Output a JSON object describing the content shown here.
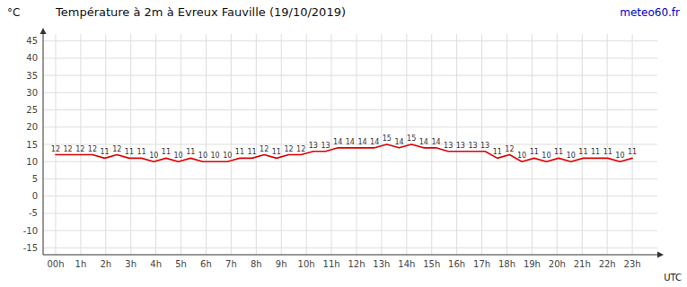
{
  "chart_data": {
    "type": "line",
    "title": "Température à 2m à Evreux Fauville (19/10/2019)",
    "x_label": "UTC",
    "y_label": "°C",
    "annotations": [
      {
        "text": "meteo60.fr",
        "color": "#0000cc"
      }
    ],
    "x": [
      0,
      0.489362,
      0.978723,
      1.468085,
      1.957447,
      2.446809,
      2.93617,
      3.425532,
      3.914894,
      4.404255,
      4.893617,
      5.382979,
      5.87234,
      6.361702,
      6.851064,
      7.340426,
      7.829787,
      8.319149,
      8.808511,
      9.297872,
      9.787234,
      10.276596,
      10.765957,
      11.255319,
      11.744681,
      12.234043,
      12.723404,
      13.212766,
      13.702128,
      14.191489,
      14.680851,
      15.170213,
      15.659574,
      16.148936,
      16.638298,
      17.12766,
      17.617021,
      18.106383,
      18.595745,
      19.085106,
      19.574468,
      20.06383,
      20.553191,
      21.042553,
      21.531915,
      22.021277,
      22.510638,
      23
    ],
    "values": [
      12,
      12,
      12,
      12,
      11,
      12,
      11,
      11,
      10,
      11,
      10,
      11,
      10,
      10,
      10,
      11,
      11,
      12,
      11,
      12,
      12,
      13,
      13,
      14,
      14,
      14,
      14,
      15,
      14,
      15,
      14,
      14,
      13,
      13,
      13,
      13,
      11,
      12,
      10,
      11,
      10,
      11,
      10,
      11,
      11,
      11,
      10,
      11
    ],
    "color": "#dd0000",
    "data_labels": true,
    "grid": true,
    "xlim": [
      -0.5,
      24.0
    ],
    "xticks": [
      {
        "value": 0,
        "label": "00h"
      },
      {
        "value": 1,
        "label": "1h"
      },
      {
        "value": 2,
        "label": "2h"
      },
      {
        "value": 3,
        "label": "3h"
      },
      {
        "value": 4,
        "label": "4h"
      },
      {
        "value": 5,
        "label": "5h"
      },
      {
        "value": 6,
        "label": "6h"
      },
      {
        "value": 7,
        "label": "7h"
      },
      {
        "value": 8,
        "label": "8h"
      },
      {
        "value": 9,
        "label": "9h"
      },
      {
        "value": 10,
        "label": "10h"
      },
      {
        "value": 11,
        "label": "11h"
      },
      {
        "value": 12,
        "label": "12h"
      },
      {
        "value": 13,
        "label": "13h"
      },
      {
        "value": 14,
        "label": "14h"
      },
      {
        "value": 15,
        "label": "15h"
      },
      {
        "value": 16,
        "label": "16h"
      },
      {
        "value": 17,
        "label": "17h"
      },
      {
        "value": 18,
        "label": "18h"
      },
      {
        "value": 19,
        "label": "19h"
      },
      {
        "value": 20,
        "label": "20h"
      },
      {
        "value": 21,
        "label": "21h"
      },
      {
        "value": 22,
        "label": "22h"
      },
      {
        "value": 23,
        "label": "23h"
      }
    ],
    "ylim": [
      -17,
      47
    ],
    "yticks": [
      -15,
      -10,
      -5,
      0,
      5,
      10,
      15,
      20,
      25,
      30,
      35,
      40,
      45
    ]
  }
}
